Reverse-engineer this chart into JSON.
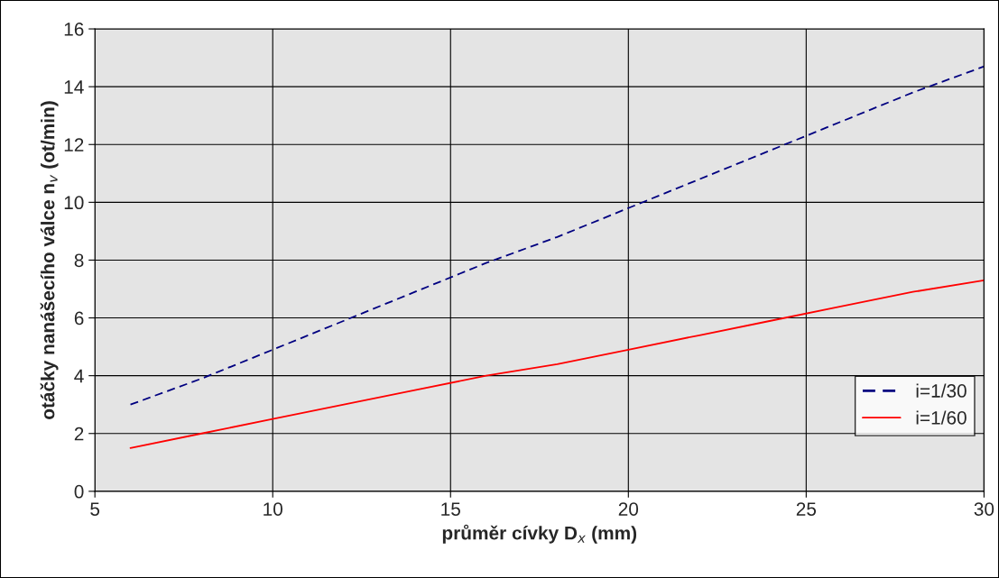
{
  "chart_data": {
    "type": "line",
    "xlabel": "průměr cívky D$_{x}$ (mm)",
    "ylabel": "otáčky nanášecího válce n$_{v}$ (ot/min)",
    "x": [
      6,
      8,
      10,
      12,
      14,
      16,
      18,
      20,
      22,
      24,
      26,
      28,
      30
    ],
    "series": [
      {
        "name": "i=1/30",
        "color": "#000080",
        "line_style": "dashed",
        "values": [
          3.0,
          3.9,
          4.9,
          5.9,
          6.9,
          7.9,
          8.8,
          9.8,
          10.8,
          11.8,
          12.8,
          13.8,
          14.7
        ]
      },
      {
        "name": "i=1/60",
        "color": "#ff0000",
        "line_style": "solid",
        "values": [
          1.5,
          2.0,
          2.5,
          3.0,
          3.5,
          4.0,
          4.4,
          4.9,
          5.4,
          5.9,
          6.4,
          6.9,
          7.3
        ]
      }
    ],
    "xlim": [
      5,
      30
    ],
    "xticks": [
      5,
      10,
      15,
      20,
      25,
      30
    ],
    "ylim": [
      0,
      16
    ],
    "yticks": [
      0,
      2,
      4,
      6,
      8,
      10,
      12,
      14,
      16
    ],
    "grid": true,
    "legend": "bottom right",
    "marker": "none"
  }
}
